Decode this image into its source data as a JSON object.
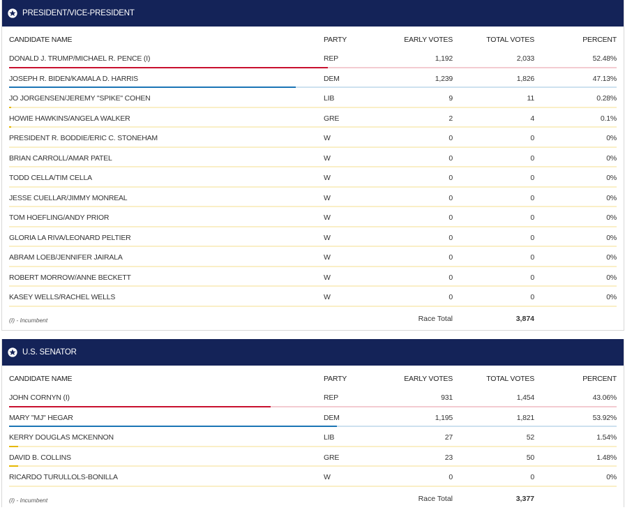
{
  "columns": {
    "name": "CANDIDATE NAME",
    "party": "PARTY",
    "early": "EARLY VOTES",
    "total": "TOTAL VOTES",
    "percent": "PERCENT"
  },
  "colors": {
    "header_bg": "#142358",
    "REP": "#c8102e",
    "DEM": "#1b75b5",
    "OTHER": "#e6b800"
  },
  "races": [
    {
      "title": "PRESIDENT/VICE-PRESIDENT",
      "icon": "star-icon",
      "incumbent_note": "(I) - Incumbent",
      "race_total_label": "Race Total",
      "race_total": "3,874",
      "candidates": [
        {
          "name": "DONALD J. TRUMP/MICHAEL R. PENCE (I)",
          "party": "REP",
          "early": "1,192",
          "total": "2,033",
          "percent": "52.48%",
          "share": 0.5248
        },
        {
          "name": "JOSEPH R. BIDEN/KAMALA D. HARRIS",
          "party": "DEM",
          "early": "1,239",
          "total": "1,826",
          "percent": "47.13%",
          "share": 0.4713
        },
        {
          "name": "JO JORGENSEN/JEREMY \"SPIKE\" COHEN",
          "party": "LIB",
          "early": "9",
          "total": "11",
          "percent": "0.28%",
          "share": 0.0028
        },
        {
          "name": "HOWIE HAWKINS/ANGELA WALKER",
          "party": "GRE",
          "early": "2",
          "total": "4",
          "percent": "0.1%",
          "share": 0.001
        },
        {
          "name": "PRESIDENT R. BODDIE/ERIC C. STONEHAM",
          "party": "W",
          "early": "0",
          "total": "0",
          "percent": "0%",
          "share": 0
        },
        {
          "name": "BRIAN CARROLL/AMAR PATEL",
          "party": "W",
          "early": "0",
          "total": "0",
          "percent": "0%",
          "share": 0
        },
        {
          "name": "TODD CELLA/TIM CELLA",
          "party": "W",
          "early": "0",
          "total": "0",
          "percent": "0%",
          "share": 0
        },
        {
          "name": "JESSE CUELLAR/JIMMY MONREAL",
          "party": "W",
          "early": "0",
          "total": "0",
          "percent": "0%",
          "share": 0
        },
        {
          "name": "TOM HOEFLING/ANDY PRIOR",
          "party": "W",
          "early": "0",
          "total": "0",
          "percent": "0%",
          "share": 0
        },
        {
          "name": "GLORIA LA RIVA/LEONARD PELTIER",
          "party": "W",
          "early": "0",
          "total": "0",
          "percent": "0%",
          "share": 0
        },
        {
          "name": "ABRAM LOEB/JENNIFER JAIRALA",
          "party": "W",
          "early": "0",
          "total": "0",
          "percent": "0%",
          "share": 0
        },
        {
          "name": "ROBERT MORROW/ANNE BECKETT",
          "party": "W",
          "early": "0",
          "total": "0",
          "percent": "0%",
          "share": 0
        },
        {
          "name": "KASEY WELLS/RACHEL WELLS",
          "party": "W",
          "early": "0",
          "total": "0",
          "percent": "0%",
          "share": 0
        }
      ]
    },
    {
      "title": "U.S. SENATOR",
      "icon": "star-icon",
      "incumbent_note": "(I) - Incumbent",
      "race_total_label": "Race Total",
      "race_total": "3,377",
      "candidates": [
        {
          "name": "JOHN CORNYN (I)",
          "party": "REP",
          "early": "931",
          "total": "1,454",
          "percent": "43.06%",
          "share": 0.4306
        },
        {
          "name": "MARY \"MJ\" HEGAR",
          "party": "DEM",
          "early": "1,195",
          "total": "1,821",
          "percent": "53.92%",
          "share": 0.5392
        },
        {
          "name": "KERRY DOUGLAS MCKENNON",
          "party": "LIB",
          "early": "27",
          "total": "52",
          "percent": "1.54%",
          "share": 0.0154
        },
        {
          "name": "DAVID B. COLLINS",
          "party": "GRE",
          "early": "23",
          "total": "50",
          "percent": "1.48%",
          "share": 0.0148
        },
        {
          "name": "RICARDO TURULLOLS-BONILLA",
          "party": "W",
          "early": "0",
          "total": "0",
          "percent": "0%",
          "share": 0
        }
      ]
    }
  ]
}
